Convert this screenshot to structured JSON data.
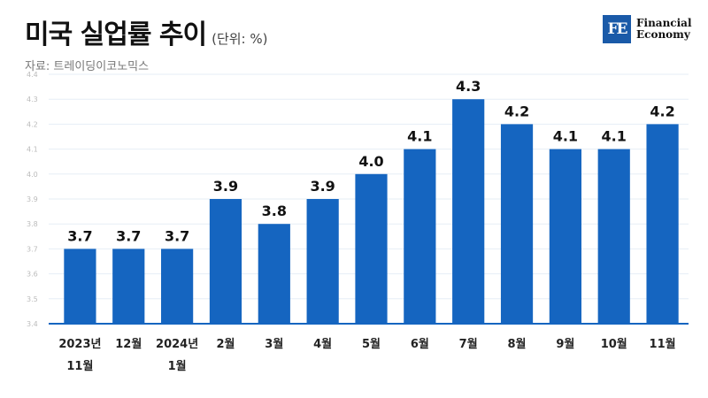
{
  "header": {
    "title": "미국 실업률 추이",
    "unit": "(단위: %)",
    "source": "자료: 트레이딩이코노믹스"
  },
  "logo": {
    "mark": "FE",
    "line1": "Financial",
    "line2": "Economy"
  },
  "colors": {
    "bar": "#1565c0",
    "grid": "#e6eef6",
    "axis": "#1565c0"
  },
  "chart_data": {
    "type": "bar",
    "title": "미국 실업률 추이",
    "ylabel": "",
    "xlabel": "",
    "categories": [
      [
        "2023년",
        "11월"
      ],
      [
        "12월"
      ],
      [
        "2024년",
        "1월"
      ],
      [
        "2월"
      ],
      [
        "3월"
      ],
      [
        "4월"
      ],
      [
        "5월"
      ],
      [
        "6월"
      ],
      [
        "7월"
      ],
      [
        "8월"
      ],
      [
        "9월"
      ],
      [
        "10월"
      ],
      [
        "11월"
      ]
    ],
    "values": [
      3.7,
      3.7,
      3.7,
      3.9,
      3.8,
      3.9,
      4.0,
      4.1,
      4.3,
      4.2,
      4.1,
      4.1,
      4.2
    ],
    "value_labels": [
      "3.7",
      "3.7",
      "3.7",
      "3.9",
      "3.8",
      "3.9",
      "4.0",
      "4.1",
      "4.3",
      "4.2",
      "4.1",
      "4.1",
      "4.2"
    ],
    "yticks": [
      "3.4",
      "3.5",
      "3.6",
      "3.7",
      "3.8",
      "3.9",
      "4.0",
      "4.1",
      "4.2",
      "4.3",
      "4.4"
    ],
    "ylim": [
      3.4,
      4.4
    ],
    "grid": true,
    "legend": "none"
  }
}
